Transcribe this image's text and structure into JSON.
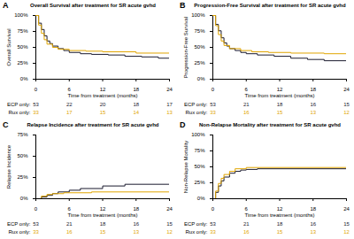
{
  "chart_data": [
    {
      "type": "line",
      "panel": "A",
      "title": "Overall Survival after treatment for SR acute gvhd",
      "x_label": "Time from treatment (months)",
      "y_label": "Overall Survival",
      "xlim": [
        0,
        24
      ],
      "xticks": [
        0,
        6,
        12,
        18,
        24
      ],
      "ylim": [
        0,
        100
      ],
      "yticks": [
        {
          "value": 0,
          "label": "0%"
        },
        {
          "value": 25,
          "label": "25%"
        },
        {
          "value": 50,
          "label": "50%"
        },
        {
          "value": 75,
          "label": "75%"
        },
        {
          "value": 100,
          "label": "100%"
        }
      ],
      "grid": false,
      "at_risk_times": [
        0,
        6,
        12,
        18,
        24
      ],
      "series": [
        {
          "name": "ECP only:",
          "color": "#1a1a2e",
          "line_style": "step",
          "x": [
            0,
            0.5,
            1,
            1.5,
            2,
            2.5,
            3,
            4,
            5,
            6,
            8,
            10,
            13,
            16,
            19,
            22,
            24
          ],
          "values": [
            100,
            88,
            78,
            68,
            60,
            56,
            52,
            48,
            45,
            42,
            40,
            39,
            38,
            36,
            35,
            33,
            32
          ],
          "at_risk": [
            53,
            22,
            20,
            18,
            17
          ]
        },
        {
          "name": "Rux only:",
          "color": "#e0a500",
          "line_style": "step",
          "x": [
            0,
            0.5,
            1,
            1.5,
            2,
            3,
            4,
            6,
            9,
            12,
            18,
            24
          ],
          "values": [
            100,
            85,
            72,
            62,
            55,
            50,
            47,
            45,
            44,
            43,
            41,
            40
          ],
          "at_risk": [
            33,
            17,
            15,
            14,
            13
          ]
        }
      ]
    },
    {
      "type": "line",
      "panel": "B",
      "title": "Progression-Free Survival after treatment for SR acute gvhd",
      "x_label": "Time from treatment (months)",
      "y_label": "Progression-Free Survival",
      "xlim": [
        0,
        24
      ],
      "xticks": [
        0,
        6,
        12,
        18,
        24
      ],
      "ylim": [
        0,
        100
      ],
      "yticks": [
        {
          "value": 0,
          "label": "0%"
        },
        {
          "value": 25,
          "label": "25%"
        },
        {
          "value": 50,
          "label": "50%"
        },
        {
          "value": 75,
          "label": "75%"
        },
        {
          "value": 100,
          "label": "100%"
        }
      ],
      "grid": false,
      "at_risk_times": [
        0,
        6,
        12,
        18,
        24
      ],
      "series": [
        {
          "name": "ECP only:",
          "color": "#1a1a2e",
          "line_style": "step",
          "x": [
            0,
            0.5,
            1,
            1.5,
            2,
            2.5,
            3,
            4,
            5,
            6,
            8,
            11,
            14,
            17,
            20,
            24
          ],
          "values": [
            100,
            86,
            76,
            65,
            57,
            52,
            48,
            45,
            42,
            40,
            38,
            36,
            33,
            31,
            29,
            28
          ],
          "at_risk": [
            53,
            21,
            18,
            16,
            15
          ]
        },
        {
          "name": "Rux only:",
          "color": "#e0a500",
          "line_style": "step",
          "x": [
            0,
            0.5,
            1,
            1.5,
            2,
            3,
            5,
            7,
            10,
            14,
            20,
            24
          ],
          "values": [
            100,
            84,
            70,
            60,
            53,
            48,
            45,
            43,
            42,
            41,
            40,
            40
          ],
          "at_risk": [
            33,
            16,
            15,
            13,
            12
          ]
        }
      ]
    },
    {
      "type": "line",
      "panel": "C",
      "title": "Relapse Incidence after treatment for SR acute gvhd",
      "x_label": "Time from treatment (months)",
      "y_label": "Relapse Incidence",
      "xlim": [
        0,
        24
      ],
      "xticks": [
        0,
        6,
        12,
        18,
        24
      ],
      "ylim": [
        0,
        75
      ],
      "yticks": [
        {
          "value": 0,
          "label": "0%"
        },
        {
          "value": 25,
          "label": "25%"
        },
        {
          "value": 50,
          "label": "50%"
        },
        {
          "value": 75,
          "label": "75%"
        }
      ],
      "grid": false,
      "at_risk_times": [
        0,
        6,
        12,
        18,
        24
      ],
      "series": [
        {
          "name": "ECP only:",
          "color": "#1a1a2e",
          "line_style": "step",
          "x": [
            0,
            1,
            2,
            3,
            4,
            6,
            8,
            12,
            16,
            24
          ],
          "values": [
            0,
            2,
            4,
            6,
            8,
            10,
            12,
            15,
            17,
            18
          ],
          "at_risk": [
            53,
            21,
            18,
            16,
            15
          ]
        },
        {
          "name": "Rux only:",
          "color": "#e0a500",
          "line_style": "step",
          "x": [
            0,
            1,
            2,
            3,
            5,
            10,
            24
          ],
          "values": [
            0,
            3,
            5,
            6,
            7,
            8,
            8
          ],
          "at_risk": [
            33,
            16,
            15,
            13,
            12
          ]
        }
      ]
    },
    {
      "type": "line",
      "panel": "D",
      "title": "Non-Relapse Mortality after treatment for SR acute gvhd",
      "x_label": "Time from treatment (months)",
      "y_label": "Non-Relapse Mortality",
      "xlim": [
        0,
        24
      ],
      "xticks": [
        0,
        6,
        12,
        18,
        24
      ],
      "ylim": [
        0,
        100
      ],
      "yticks": [
        {
          "value": 0,
          "label": "0%"
        },
        {
          "value": 25,
          "label": "25%"
        },
        {
          "value": 50,
          "label": "50%"
        },
        {
          "value": 75,
          "label": "75%"
        },
        {
          "value": 100,
          "label": "100%"
        }
      ],
      "grid": false,
      "at_risk_times": [
        0,
        6,
        12,
        18,
        24
      ],
      "series": [
        {
          "name": "ECP only:",
          "color": "#1a1a2e",
          "line_style": "step",
          "x": [
            0,
            0.5,
            1,
            1.5,
            2,
            3,
            4,
            5,
            6,
            8,
            24
          ],
          "values": [
            0,
            10,
            20,
            28,
            34,
            40,
            43,
            45,
            46,
            47,
            47
          ],
          "at_risk": [
            53,
            21,
            18,
            16,
            15
          ]
        },
        {
          "name": "Rux only:",
          "color": "#e0a500",
          "line_style": "step",
          "x": [
            0,
            0.5,
            1,
            1.5,
            2,
            3,
            4,
            6,
            24
          ],
          "values": [
            0,
            12,
            24,
            32,
            38,
            43,
            47,
            49,
            49
          ],
          "at_risk": [
            33,
            16,
            15,
            13,
            12
          ]
        }
      ]
    }
  ]
}
